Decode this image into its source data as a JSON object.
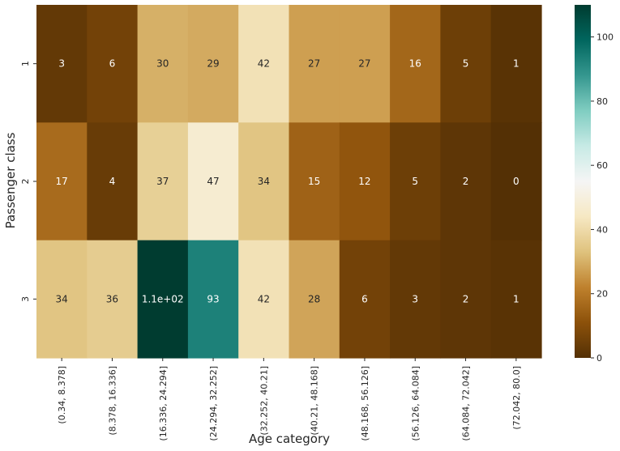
{
  "chart_data": {
    "type": "heatmap",
    "title": "",
    "xlabel": "Age category",
    "ylabel": "Passenger class",
    "x_categories": [
      "(0.34, 8.378]",
      "(8.378, 16.336]",
      "(16.336, 24.294]",
      "(24.294, 32.252]",
      "(32.252, 40.21]",
      "(40.21, 48.168]",
      "(48.168, 56.126]",
      "(56.126, 64.084]",
      "(64.084, 72.042]",
      "(72.042, 80.0]"
    ],
    "y_categories": [
      "1",
      "2",
      "3"
    ],
    "values": [
      [
        3,
        6,
        30,
        29,
        42,
        27,
        27,
        16,
        5,
        1
      ],
      [
        17,
        4,
        37,
        47,
        34,
        15,
        12,
        5,
        2,
        0
      ],
      [
        34,
        36,
        110,
        93,
        42,
        28,
        6,
        3,
        2,
        1
      ]
    ],
    "annotations": [
      [
        "3",
        "6",
        "30",
        "29",
        "42",
        "27",
        "27",
        "16",
        "5",
        "1"
      ],
      [
        "17",
        "4",
        "37",
        "47",
        "34",
        "15",
        "12",
        "5",
        "2",
        "0"
      ],
      [
        "34",
        "36",
        "1.1e+02",
        "93",
        "42",
        "28",
        "6",
        "3",
        "2",
        "1"
      ]
    ],
    "colormap": "BrBG",
    "vmin": 0,
    "vmax": 110,
    "colorbar_ticks": [
      0,
      20,
      40,
      60,
      80,
      100
    ],
    "colorbar_tick_labels": [
      "0",
      "20",
      "40",
      "60",
      "80",
      "100"
    ]
  }
}
